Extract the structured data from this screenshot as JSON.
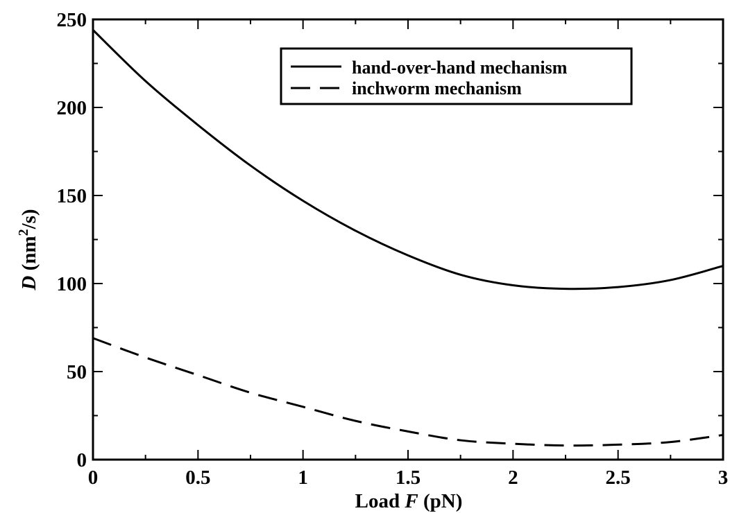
{
  "chart_data": {
    "type": "line",
    "title": "",
    "xlabel": {
      "prefix": "Load ",
      "italic": "F",
      "suffix": " (pN)"
    },
    "ylabel": {
      "italic": "D",
      "prefix": " (nm",
      "superscript": "2",
      "suffix": "/s)"
    },
    "xlim": [
      0,
      3
    ],
    "ylim": [
      0,
      250
    ],
    "x_ticks": [
      0,
      0.5,
      1,
      1.5,
      2,
      2.5,
      3
    ],
    "x_tick_labels": [
      "0",
      "0.5",
      "1",
      "1.5",
      "2",
      "2.5",
      "3"
    ],
    "x_minor_ticks": [
      0.25,
      0.75,
      1.25,
      1.75,
      2.25,
      2.75
    ],
    "y_ticks": [
      0,
      50,
      100,
      150,
      200,
      250
    ],
    "y_tick_labels": [
      "0",
      "50",
      "100",
      "150",
      "200",
      "250"
    ],
    "y_minor_ticks": [
      25,
      75,
      125,
      175,
      225
    ],
    "grid": false,
    "legend_position": "top-right",
    "series": [
      {
        "name": "hand-over-hand mechanism",
        "style": "solid",
        "color": "#000000",
        "x": [
          0,
          0.25,
          0.5,
          0.75,
          1.0,
          1.25,
          1.5,
          1.75,
          2.0,
          2.25,
          2.5,
          2.75,
          3.0
        ],
        "y": [
          244,
          215,
          190,
          167,
          147,
          130,
          116,
          105,
          99,
          97,
          98,
          102,
          110
        ]
      },
      {
        "name": "inchworm mechanism",
        "style": "dashed",
        "color": "#000000",
        "x": [
          0,
          0.25,
          0.5,
          0.75,
          1.0,
          1.25,
          1.5,
          1.75,
          2.0,
          2.25,
          2.5,
          2.75,
          3.0
        ],
        "y": [
          69,
          58,
          48,
          38,
          30,
          22,
          16,
          11,
          9,
          8,
          8.5,
          10,
          14
        ]
      }
    ]
  }
}
